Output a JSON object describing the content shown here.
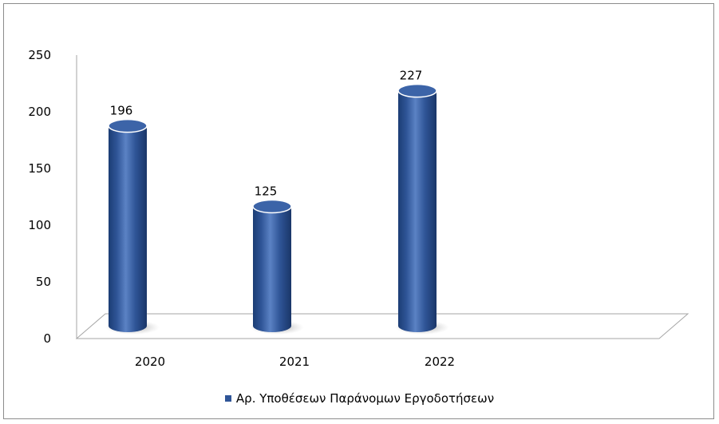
{
  "chart_data": {
    "type": "bar",
    "style": "3d-cylinder",
    "categories": [
      "2020",
      "2021",
      "2022"
    ],
    "series": [
      {
        "name": "Αρ. Υποθέσεων Παράνομων Εργοδοτήσεων",
        "values": [
          196,
          125,
          227
        ],
        "color": "#2f5597"
      }
    ],
    "data_labels": [
      "196",
      "125",
      "227"
    ],
    "ylim": [
      0,
      250
    ],
    "yticks": [
      "0",
      "50",
      "100",
      "150",
      "200",
      "250"
    ],
    "grid": false,
    "legend_position": "bottom"
  }
}
